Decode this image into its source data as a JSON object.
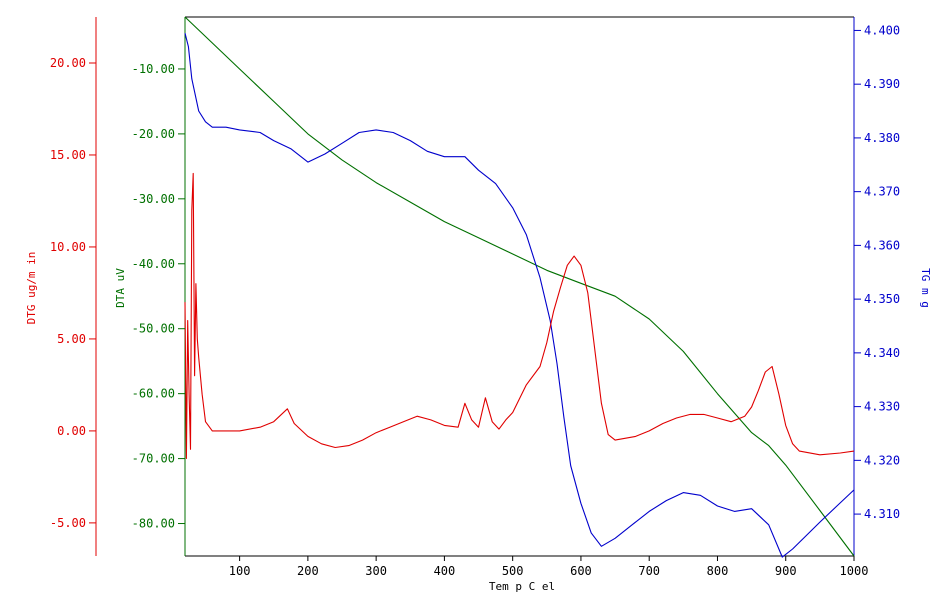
{
  "colors": {
    "dtg": "#e00000",
    "dta": "#007000",
    "tg": "#0000cc",
    "frame": "#000000"
  },
  "chart_data": {
    "type": "line",
    "title": "",
    "xlabel": "Tem p C el",
    "xlim": [
      20,
      1000
    ],
    "xticks": [
      "100",
      "200",
      "300",
      "400",
      "500",
      "600",
      "700",
      "800",
      "900",
      "1000"
    ],
    "axes": {
      "dtg": {
        "label": "DTG ug/m in",
        "ylim": [
          -6.8,
          22.5
        ],
        "ticks": [
          "20.00",
          "15.00",
          "10.00",
          "5.00",
          "0.00",
          "-5.00"
        ]
      },
      "dta": {
        "label": "DTA uV",
        "ylim": [
          -85,
          -2
        ],
        "ticks": [
          "-10.00",
          "-20.00",
          "-30.00",
          "-40.00",
          "-50.00",
          "-60.00",
          "-70.00",
          "-80.00"
        ]
      },
      "tg": {
        "label": "TG m g",
        "ylim": [
          4.3022,
          4.4025
        ],
        "ticks": [
          "4.400",
          "4.390",
          "4.380",
          "4.370",
          "4.360",
          "4.350",
          "4.340",
          "4.330",
          "4.320",
          "4.310"
        ]
      }
    },
    "grid": false,
    "series": [
      {
        "name": "DTA",
        "axis": "dta",
        "x": [
          20,
          50,
          100,
          150,
          200,
          250,
          300,
          350,
          400,
          450,
          500,
          550,
          600,
          650,
          700,
          750,
          800,
          850,
          875,
          900,
          950,
          1000
        ],
        "y": [
          -2,
          -5,
          -10,
          -15,
          -20,
          -24,
          -27.5,
          -30.5,
          -33.5,
          -36,
          -38.5,
          -41,
          -43,
          -45,
          -48.5,
          -53.5,
          -60,
          -66,
          -68,
          -71,
          -78,
          -85
        ]
      },
      {
        "name": "TG",
        "axis": "tg",
        "x": [
          20,
          25,
          30,
          40,
          50,
          60,
          80,
          100,
          130,
          150,
          175,
          200,
          225,
          250,
          275,
          300,
          325,
          350,
          375,
          400,
          420,
          430,
          450,
          475,
          500,
          520,
          540,
          555,
          565,
          575,
          585,
          600,
          615,
          630,
          650,
          675,
          700,
          725,
          750,
          775,
          800,
          825,
          850,
          875,
          895,
          910,
          930,
          950,
          975,
          1000
        ],
        "y": [
          4.3995,
          4.397,
          4.391,
          4.385,
          4.383,
          4.382,
          4.382,
          4.3815,
          4.381,
          4.3795,
          4.378,
          4.3755,
          4.377,
          4.379,
          4.381,
          4.3815,
          4.381,
          4.3795,
          4.3775,
          4.3765,
          4.3765,
          4.3765,
          4.374,
          4.3715,
          4.367,
          4.362,
          4.354,
          4.346,
          4.338,
          4.328,
          4.319,
          4.312,
          4.3065,
          4.304,
          4.3055,
          4.308,
          4.3105,
          4.3125,
          4.314,
          4.3135,
          4.3115,
          4.3105,
          4.311,
          4.308,
          4.302,
          4.3035,
          4.306,
          4.3085,
          4.3115,
          4.3145
        ]
      },
      {
        "name": "DTG",
        "axis": "dtg",
        "x": [
          20,
          22,
          24,
          26,
          28,
          30,
          32,
          34,
          36,
          38,
          40,
          45,
          50,
          60,
          80,
          100,
          130,
          150,
          170,
          180,
          200,
          220,
          240,
          260,
          280,
          300,
          320,
          340,
          360,
          380,
          400,
          420,
          430,
          440,
          450,
          460,
          470,
          480,
          490,
          500,
          520,
          540,
          550,
          560,
          570,
          580,
          590,
          600,
          610,
          620,
          630,
          640,
          650,
          680,
          700,
          720,
          740,
          760,
          780,
          800,
          820,
          840,
          850,
          860,
          870,
          880,
          890,
          900,
          910,
          920,
          950,
          980,
          1000
        ],
        "y": [
          7,
          -1.5,
          6,
          2,
          -1,
          12,
          14,
          3,
          8,
          5,
          4,
          2,
          0.5,
          0,
          0,
          0,
          0.2,
          0.5,
          1.2,
          0.4,
          -0.3,
          -0.7,
          -0.9,
          -0.8,
          -0.5,
          -0.1,
          0.2,
          0.5,
          0.8,
          0.6,
          0.3,
          0.2,
          1.5,
          0.6,
          0.2,
          1.8,
          0.5,
          0.1,
          0.6,
          1,
          2.5,
          3.5,
          4.8,
          6.5,
          7.8,
          9,
          9.5,
          9,
          7.5,
          4.5,
          1.5,
          -0.2,
          -0.5,
          -0.3,
          0,
          0.4,
          0.7,
          0.9,
          0.9,
          0.7,
          0.5,
          0.8,
          1.3,
          2.2,
          3.2,
          3.5,
          2,
          0.3,
          -0.7,
          -1.1,
          -1.3,
          -1.2,
          -1.1
        ]
      }
    ]
  }
}
